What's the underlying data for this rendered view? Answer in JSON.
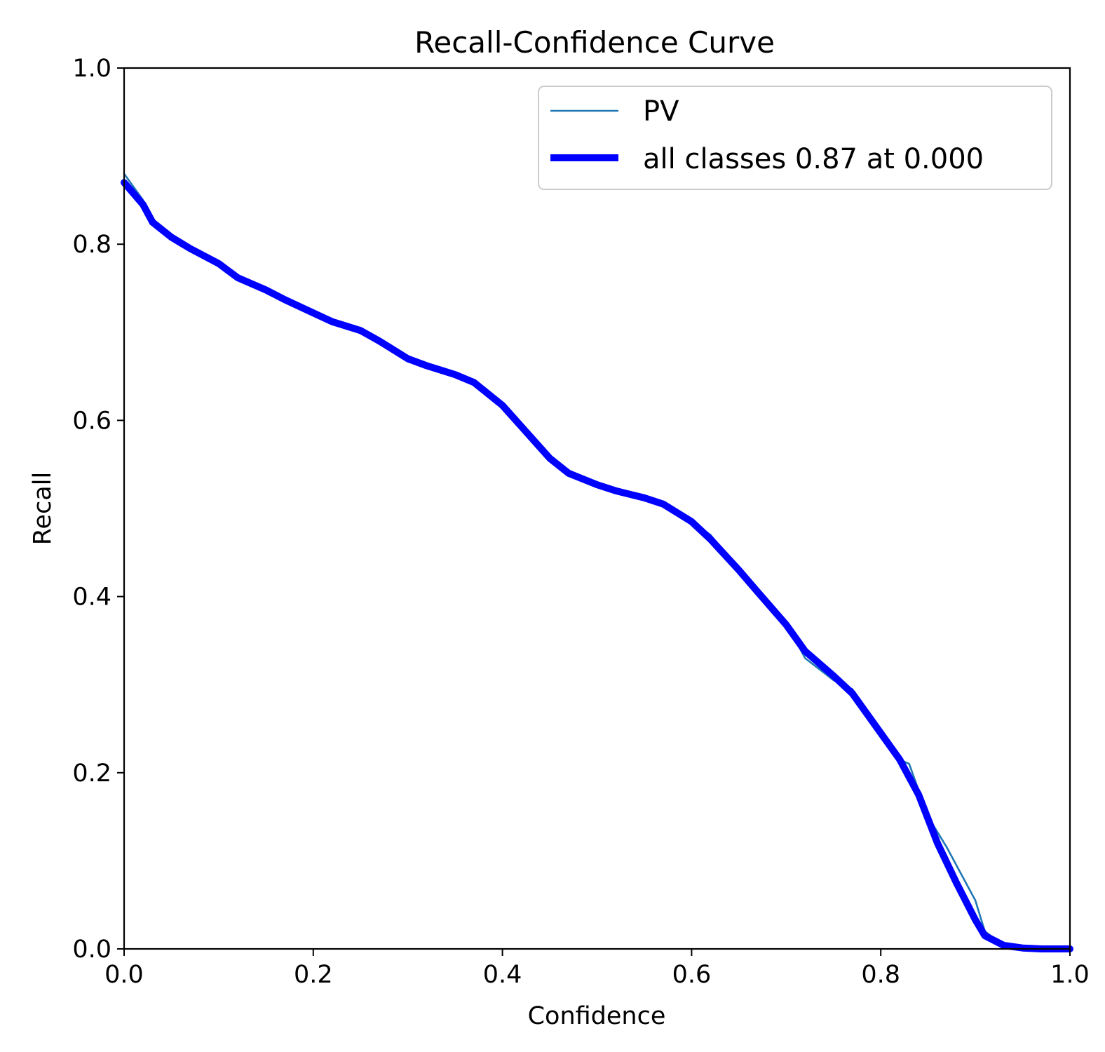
{
  "chart_data": {
    "type": "line",
    "title": "Recall-Confidence Curve",
    "xlabel": "Confidence",
    "ylabel": "Recall",
    "xlim": [
      0.0,
      1.0
    ],
    "ylim": [
      0.0,
      1.0
    ],
    "xticks": [
      "0.0",
      "0.2",
      "0.4",
      "0.6",
      "0.8",
      "1.0"
    ],
    "yticks": [
      "0.0",
      "0.2",
      "0.4",
      "0.6",
      "0.8",
      "1.0"
    ],
    "grid": false,
    "legend_position": "top-right",
    "series": [
      {
        "name": "PV",
        "color": "#1f77b4",
        "x": [
          0.0,
          0.02,
          0.03,
          0.05,
          0.07,
          0.1,
          0.12,
          0.15,
          0.17,
          0.2,
          0.22,
          0.25,
          0.27,
          0.3,
          0.32,
          0.35,
          0.37,
          0.4,
          0.42,
          0.45,
          0.47,
          0.5,
          0.52,
          0.55,
          0.57,
          0.6,
          0.62,
          0.65,
          0.67,
          0.7,
          0.72,
          0.75,
          0.77,
          0.8,
          0.82,
          0.83,
          0.85,
          0.87,
          0.9,
          0.91,
          0.93,
          0.95,
          0.97,
          1.0
        ],
        "y": [
          0.88,
          0.85,
          0.825,
          0.81,
          0.795,
          0.78,
          0.76,
          0.75,
          0.74,
          0.722,
          0.71,
          0.702,
          0.69,
          0.67,
          0.662,
          0.652,
          0.645,
          0.615,
          0.595,
          0.555,
          0.54,
          0.528,
          0.522,
          0.512,
          0.505,
          0.485,
          0.47,
          0.43,
          0.405,
          0.37,
          0.33,
          0.305,
          0.295,
          0.24,
          0.215,
          0.21,
          0.15,
          0.115,
          0.055,
          0.02,
          0.004,
          0.001,
          0.0,
          0.0
        ]
      },
      {
        "name": "all classes 0.87 at 0.000",
        "color": "#0000ff",
        "x": [
          0.0,
          0.02,
          0.03,
          0.05,
          0.07,
          0.1,
          0.12,
          0.15,
          0.17,
          0.2,
          0.22,
          0.25,
          0.27,
          0.3,
          0.32,
          0.35,
          0.37,
          0.4,
          0.42,
          0.45,
          0.47,
          0.5,
          0.52,
          0.55,
          0.57,
          0.6,
          0.62,
          0.65,
          0.67,
          0.7,
          0.72,
          0.75,
          0.77,
          0.8,
          0.82,
          0.84,
          0.86,
          0.88,
          0.9,
          0.91,
          0.93,
          0.95,
          0.97,
          1.0
        ],
        "y": [
          0.87,
          0.845,
          0.825,
          0.808,
          0.795,
          0.778,
          0.762,
          0.748,
          0.737,
          0.722,
          0.712,
          0.702,
          0.69,
          0.67,
          0.662,
          0.652,
          0.643,
          0.617,
          0.593,
          0.557,
          0.54,
          0.527,
          0.52,
          0.512,
          0.505,
          0.485,
          0.465,
          0.43,
          0.405,
          0.368,
          0.338,
          0.31,
          0.29,
          0.245,
          0.215,
          0.175,
          0.12,
          0.075,
          0.033,
          0.015,
          0.004,
          0.001,
          0.0,
          0.0
        ]
      }
    ]
  }
}
